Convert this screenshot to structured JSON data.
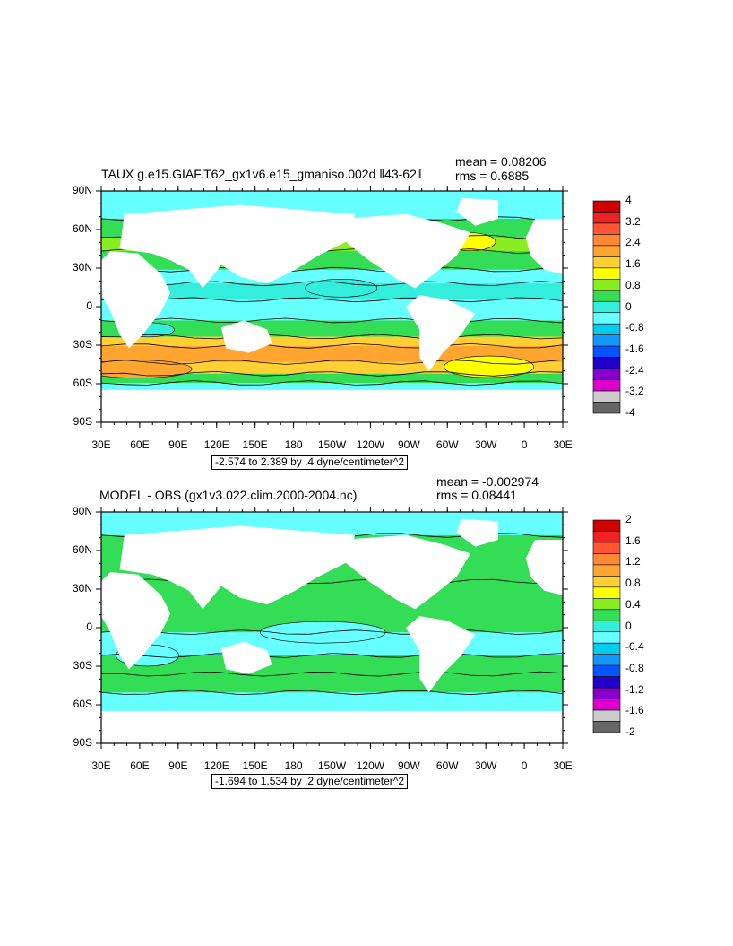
{
  "panels": [
    {
      "title": "TAUX g.e15.GIAF.T62_gx1v6.e15_gmaniso.002d ‖43-62‖",
      "mean": "mean = 0.08206",
      "rms": "rms = 0.6885",
      "range_label": "-2.574 to 2.389 by .4 dyne/centimeter^2",
      "colorbar": {
        "labels": [
          "4",
          "3.2",
          "2.4",
          "1.6",
          "0.8",
          "0",
          "-0.8",
          "-1.6",
          "-2.4",
          "-3.2",
          "-4"
        ],
        "colors": [
          "#d00000",
          "#ee2222",
          "#ff5533",
          "#ff8833",
          "#ffa530",
          "#ffd033",
          "#ffff00",
          "#88ee22",
          "#33dd55",
          "#33eedd",
          "#66ffff",
          "#00ccee",
          "#1199ff",
          "#0055ff",
          "#2200cc",
          "#8800cc",
          "#dd00cc",
          "#cccccc",
          "#666666"
        ]
      }
    },
    {
      "title": "MODEL - OBS (gx1v3.022.clim.2000-2004.nc)",
      "mean": "mean = -0.002974",
      "rms": "rms = 0.08441",
      "range_label": "-1.694 to 1.534 by .2 dyne/centimeter^2",
      "colorbar": {
        "labels": [
          "2",
          "1.6",
          "1.2",
          "0.8",
          "0.4",
          "0",
          "-0.4",
          "-0.8",
          "-1.2",
          "-1.6",
          "-2"
        ],
        "colors": [
          "#d00000",
          "#ee2222",
          "#ff5533",
          "#ff8833",
          "#ffa530",
          "#ffd033",
          "#ffff00",
          "#88ee22",
          "#33dd55",
          "#33eedd",
          "#66ffff",
          "#00ccee",
          "#1199ff",
          "#0055ff",
          "#2200cc",
          "#8800cc",
          "#dd00cc",
          "#cccccc",
          "#666666"
        ]
      }
    }
  ],
  "axes": {
    "lon_labels": [
      "30E",
      "60E",
      "90E",
      "120E",
      "150E",
      "180",
      "150W",
      "120W",
      "90W",
      "60W",
      "30W",
      "0",
      "30E"
    ],
    "lat_labels": [
      "90N",
      "60N",
      "30N",
      "0",
      "30S",
      "60S",
      "90S"
    ]
  },
  "map_colors": {
    "land": "#ffffff",
    "contour": "#000000"
  }
}
